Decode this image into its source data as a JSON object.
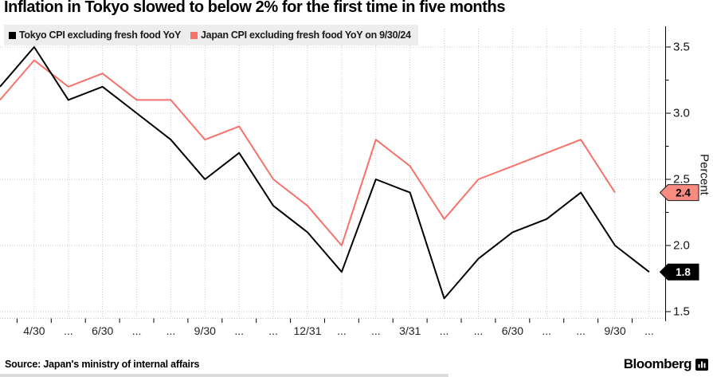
{
  "title": "Inflation in Tokyo slowed to below 2% for the first time in five months",
  "legend": [
    {
      "label": "Tokyo CPI excluding fresh food YoY",
      "color": "#000000"
    },
    {
      "label": "Japan CPI excluding fresh food YoY on 9/30/24",
      "color": "#f7716a"
    }
  ],
  "chart_data": {
    "type": "line",
    "ylabel": "Percent",
    "ylim": [
      1.45,
      3.65
    ],
    "y_ticks": [
      3.5,
      3.0,
      2.5,
      2.0,
      1.5
    ],
    "y_minor_ticks": [
      3.25,
      2.75,
      2.25,
      1.75
    ],
    "x_tick_labels": [
      "4/30",
      "...",
      "6/30",
      "...",
      "...",
      "9/30",
      "...",
      "...",
      "12/31",
      "...",
      "...",
      "3/31",
      "...",
      "...",
      "6/30",
      "...",
      "...",
      "9/30",
      "..."
    ],
    "grid": true,
    "legend_position": "top-left",
    "series": [
      {
        "name": "Tokyo CPI excluding fresh food YoY",
        "color": "#000000",
        "values": [
          3.2,
          3.5,
          3.1,
          3.2,
          3.0,
          2.8,
          2.5,
          2.7,
          2.3,
          2.1,
          1.8,
          2.5,
          2.4,
          1.6,
          1.9,
          2.1,
          2.2,
          2.4,
          2.0,
          1.8
        ],
        "end_label": "1.8",
        "end_label_bg": "#000000",
        "end_label_fg": "#ffffff",
        "end_label_border": "#000000"
      },
      {
        "name": "Japan CPI excluding fresh food YoY on 9/30/24",
        "color": "#f7716a",
        "values": [
          3.1,
          3.4,
          3.2,
          3.3,
          3.1,
          3.1,
          2.8,
          2.9,
          2.5,
          2.3,
          2.0,
          2.8,
          2.6,
          2.2,
          2.5,
          2.6,
          2.7,
          2.8,
          2.4
        ],
        "end_label": "2.4",
        "end_label_bg": "#f98b81",
        "end_label_fg": "#000000",
        "end_label_border": "#1a1a1a"
      }
    ]
  },
  "footer": {
    "source": "Source: Japan's ministry of internal affairs",
    "brand": "Bloomberg"
  }
}
